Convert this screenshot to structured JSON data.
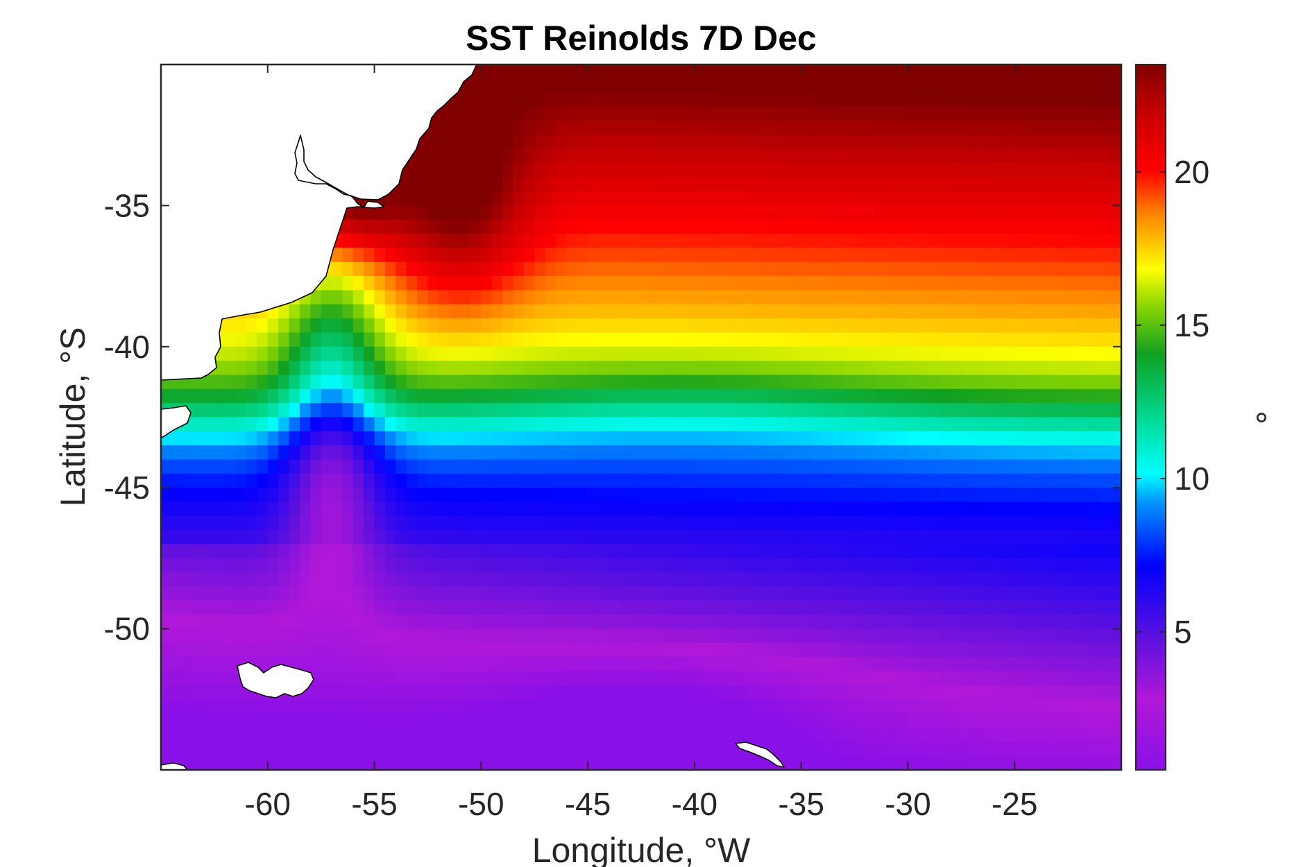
{
  "title": "SST Reinolds 7D Dec",
  "map": {
    "xlabel": "Longitude, °W",
    "ylabel": "Latitude, °S",
    "x_range": [
      -65,
      -20
    ],
    "y_range": [
      -55,
      -30
    ],
    "x_ticks": [
      -60,
      -55,
      -50,
      -45,
      -40,
      -35,
      -30,
      -25
    ],
    "x_tick_labels": [
      "-60",
      "-55",
      "-50",
      "-45",
      "-40",
      "-35",
      "-30",
      "-25"
    ],
    "y_ticks": [
      -35,
      -40,
      -45,
      -50
    ],
    "y_tick_labels": [
      "-35",
      "-40",
      "-45",
      "-50"
    ],
    "grid": false,
    "land_color": "#ffffff",
    "coastline_color": "#000000"
  },
  "colorbar": {
    "label": "°",
    "range": [
      0.5,
      23.5
    ],
    "ticks": [
      5,
      10,
      15,
      20
    ],
    "tick_labels": [
      "5",
      "10",
      "15",
      "20"
    ],
    "colormap": [
      "#8a10e8",
      "#b018d8",
      "#5a10e0",
      "#0000ff",
      "#0096ff",
      "#00ffff",
      "#00d890",
      "#10a020",
      "#90d800",
      "#ffff00",
      "#ff8000",
      "#ff0000",
      "#c80000",
      "#800000"
    ]
  }
}
